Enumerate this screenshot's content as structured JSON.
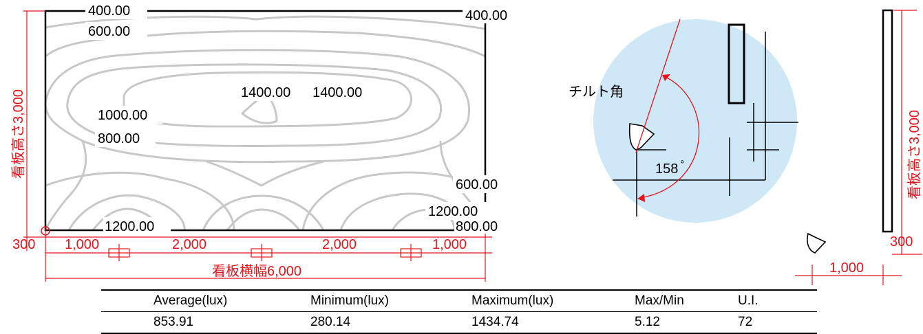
{
  "colors": {
    "dimension": "#e8141b",
    "contour": "#c8c8c8",
    "light_circle": "#cfe8f8",
    "frame": "#000000"
  },
  "contour_labels": [
    "400.00",
    "400.00",
    "600.00",
    "1400.00",
    "1400.00",
    "1000.00",
    "800.00",
    "600.00",
    "1200.00",
    "800.00",
    "1200.00"
  ],
  "front": {
    "height_label": "看板高さ3,000",
    "width_label": "看板横幅6,000",
    "offset": "300",
    "spacing": [
      "1,000",
      "2,000",
      "2,000",
      "1,000"
    ]
  },
  "side": {
    "tilt_label": "チルト角",
    "angle": "158",
    "angle_unit": "°"
  },
  "side_right": {
    "height_label": "看板高さ3,000",
    "offset": "300",
    "distance": "1,000"
  },
  "table": {
    "headers": [
      "Average(lux)",
      "Minimum(lux)",
      "Maximum(lux)",
      "Max/Min",
      "U.I."
    ],
    "rows": [
      [
        "853.91",
        "280.14",
        "1434.74",
        "5.12",
        "72"
      ]
    ]
  }
}
